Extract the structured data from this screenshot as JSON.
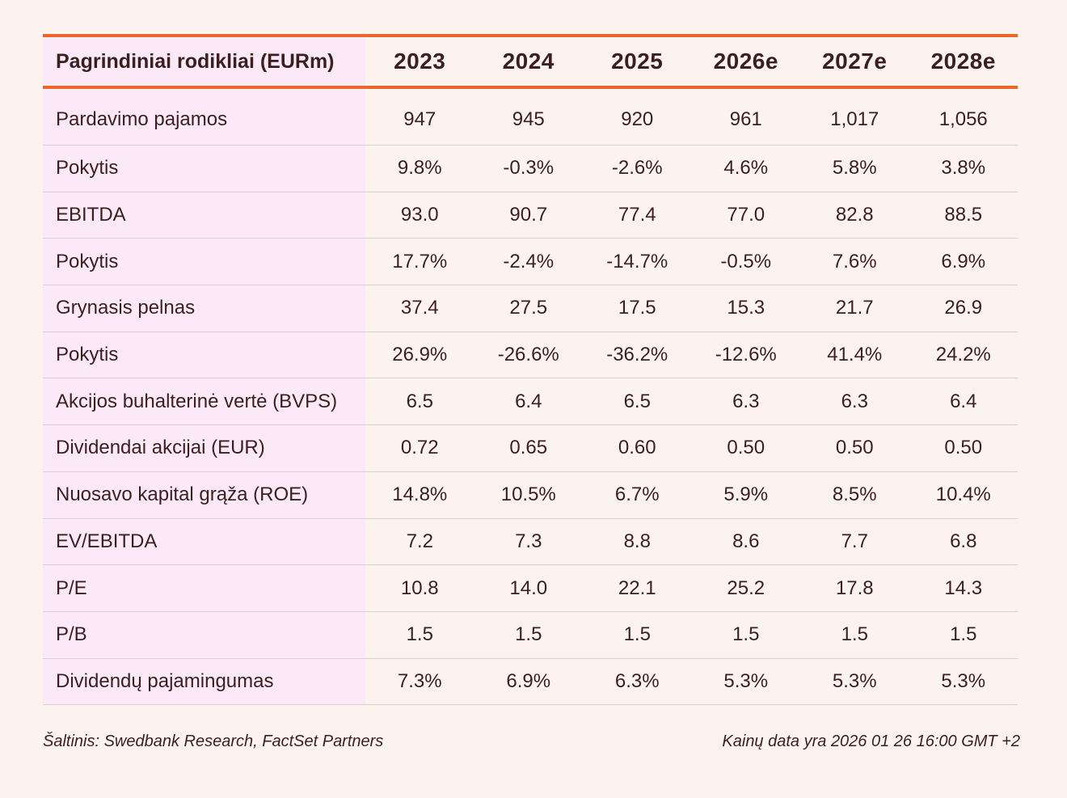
{
  "table": {
    "header": [
      "Pagrindiniai rodikliai (EURm)",
      "2023",
      "2024",
      "2025",
      "2026e",
      "2027e",
      "2028e"
    ],
    "rows": [
      {
        "label": "Pardavimo pajamos",
        "values": [
          "947",
          "945",
          "920",
          "961",
          "1,017",
          "1,056"
        ]
      },
      {
        "label": "Pokytis",
        "values": [
          "9.8%",
          "-0.3%",
          "-2.6%",
          "4.6%",
          "5.8%",
          "3.8%"
        ]
      },
      {
        "label": "EBITDA",
        "values": [
          "93.0",
          "90.7",
          "77.4",
          "77.0",
          "82.8",
          "88.5"
        ]
      },
      {
        "label": "Pokytis",
        "values": [
          "17.7%",
          "-2.4%",
          "-14.7%",
          "-0.5%",
          "7.6%",
          "6.9%"
        ]
      },
      {
        "label": "Grynasis pelnas",
        "values": [
          "37.4",
          "27.5",
          "17.5",
          "15.3",
          "21.7",
          "26.9"
        ]
      },
      {
        "label": "Pokytis",
        "values": [
          "26.9%",
          "-26.6%",
          "-36.2%",
          "-12.6%",
          "41.4%",
          "24.2%"
        ]
      },
      {
        "label": "Akcijos buhalterinė vertė (BVPS)",
        "values": [
          "6.5",
          "6.4",
          "6.5",
          "6.3",
          "6.3",
          "6.4"
        ]
      },
      {
        "label": "Dividendai akcijai (EUR)",
        "values": [
          "0.72",
          "0.65",
          "0.60",
          "0.50",
          "0.50",
          "0.50"
        ]
      },
      {
        "label": "Nuosavo kapital grąža (ROE)",
        "values": [
          "14.8%",
          "10.5%",
          "6.7%",
          "5.9%",
          "8.5%",
          "10.4%"
        ]
      },
      {
        "label": "EV/EBITDA",
        "values": [
          "7.2",
          "7.3",
          "8.8",
          "8.6",
          "7.7",
          "6.8"
        ]
      },
      {
        "label": "P/E",
        "values": [
          "10.8",
          "14.0",
          "22.1",
          "25.2",
          "17.8",
          "14.3"
        ]
      },
      {
        "label": "P/B",
        "values": [
          "1.5",
          "1.5",
          "1.5",
          "1.5",
          "1.5",
          "1.5"
        ]
      },
      {
        "label": "Dividendų pajamingumas",
        "values": [
          "7.3%",
          "6.9%",
          "6.3%",
          "5.3%",
          "5.3%",
          "5.3%"
        ]
      }
    ]
  },
  "footer": {
    "source": "Šaltinis: Swedbank Research, FactSet Partners",
    "price_date": "Kainų data yra 2026 01 26 16:00 GMT +2"
  },
  "colors": {
    "background": "#fdf3ee",
    "accent": "#e8692e",
    "label_column": "#fce9f8",
    "text": "#3b1f1f",
    "rule": "#d9cfcc"
  }
}
